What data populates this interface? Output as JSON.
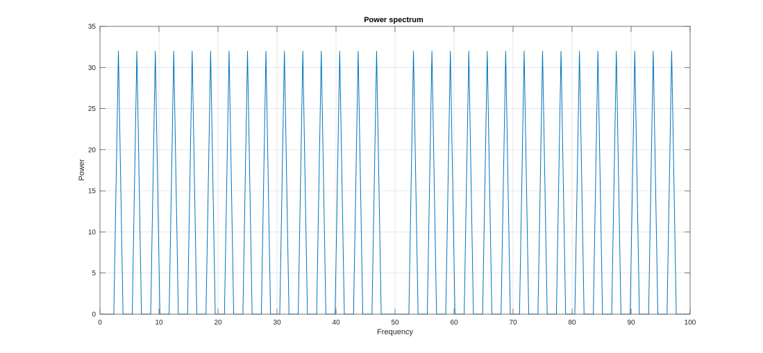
{
  "chart_data": {
    "type": "line",
    "title": "Power spectrum",
    "xlabel": "Frequency",
    "ylabel": "Power",
    "xlim": [
      0,
      100
    ],
    "ylim": [
      0,
      35
    ],
    "xticks": [
      0,
      10,
      20,
      30,
      40,
      50,
      60,
      70,
      80,
      90,
      100
    ],
    "yticks": [
      0,
      5,
      10,
      15,
      20,
      25,
      30,
      35
    ],
    "grid": true,
    "legend": "none",
    "colors": {
      "line": "#0072BD",
      "grid": "#e6e6e6",
      "axes": "#262626"
    },
    "peak_frequencies": [
      3.125,
      6.25,
      9.375,
      12.5,
      15.625,
      18.75,
      21.875,
      25,
      28.125,
      31.25,
      34.375,
      37.5,
      40.625,
      43.75,
      46.875,
      53.125,
      56.25,
      59.375,
      62.5,
      65.625,
      68.75,
      71.875,
      75,
      78.125,
      81.25,
      84.375,
      87.5,
      90.625,
      93.75,
      96.875
    ],
    "peak_value": 32,
    "base_value": 0,
    "sample_step": 0.78125,
    "sample_start": 0,
    "sample_end": 100
  }
}
